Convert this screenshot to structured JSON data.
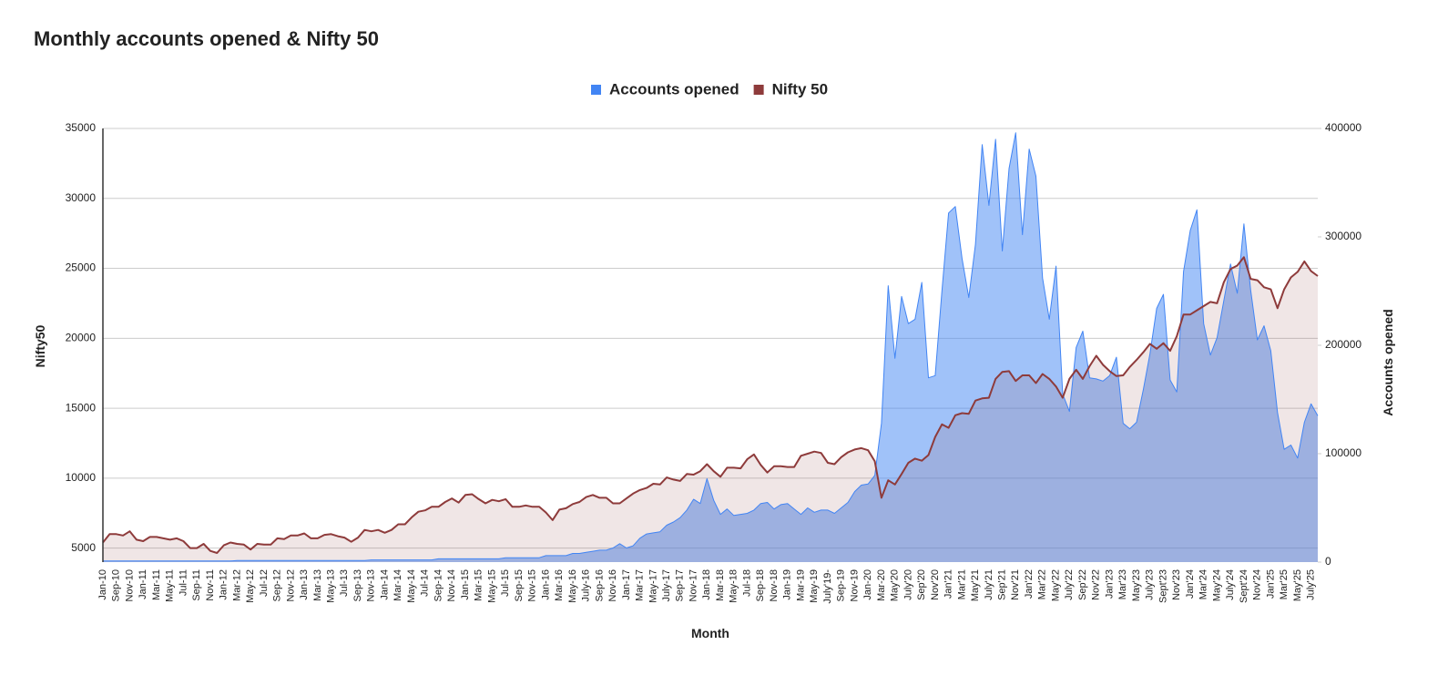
{
  "chart_data": {
    "type": "area",
    "title": "Monthly accounts opened & Nifty 50",
    "x_axis_label": "Month",
    "y_axis_label": "Nifty50",
    "y2_axis_label": "Accounts opened",
    "legend": "top",
    "grid": true,
    "categories": [
      "Jan-10",
      null,
      "Sep-10",
      null,
      "Nov-10",
      null,
      "Jan-11",
      null,
      "Mar-11",
      null,
      "May-11",
      null,
      "Jul-11",
      null,
      "Sep-11",
      null,
      "Nov-11",
      null,
      "Jan-12",
      null,
      "Mar-12",
      null,
      "May-12",
      null,
      "Jul-12",
      null,
      "Sep-12",
      null,
      "Nov-12",
      null,
      "Jan-13",
      null,
      "Mar-13",
      null,
      "May-13",
      null,
      "Jul-13",
      null,
      "Sep-13",
      null,
      "Nov-13",
      null,
      "Jan-14",
      null,
      "Mar-14",
      null,
      "May-14",
      null,
      "Jul-14",
      null,
      "Sep-14",
      null,
      "Nov-14",
      null,
      "Jan-15",
      null,
      "Mar-15",
      null,
      "May-15",
      null,
      "Jul-15",
      null,
      "Sep-15",
      null,
      "Nov-15",
      null,
      "Jan-16",
      null,
      "Mar-16",
      null,
      "May-16",
      null,
      "July-16",
      null,
      "Sep-16",
      null,
      "Nov-16",
      null,
      "Jan-17",
      null,
      "Mar-17",
      null,
      "May-17",
      null,
      "July-17",
      null,
      "Sep-17",
      null,
      "Nov-17",
      null,
      "Jan-18",
      null,
      "Mar-18",
      null,
      "May-18",
      null,
      "Jul-18",
      null,
      "Sep-18",
      null,
      "Nov-18",
      null,
      "Jan-19",
      null,
      "Mar-19",
      null,
      "May-19",
      null,
      "July'19-",
      null,
      "Sep-19",
      null,
      "Nov-19",
      null,
      "Jan-20",
      null,
      "Mar-20",
      null,
      "May'20",
      null,
      "July'20",
      null,
      "Sep'20",
      null,
      "Nov'20",
      null,
      "Jan'21",
      null,
      "Mar'21",
      null,
      "May'21",
      null,
      "July'21",
      null,
      "Sep'21",
      null,
      "Nov'21",
      null,
      "Jan'22",
      null,
      "Mar'22",
      null,
      "May'22",
      null,
      "July'22",
      null,
      "Sep'22",
      null,
      "Nov'22",
      null,
      "Jan'23",
      null,
      "Mar'23",
      null,
      "May'23",
      null,
      "July'23",
      null,
      "Sept'23",
      null,
      "Nov'23",
      null,
      "Jan'24",
      null,
      "Mar'24",
      null,
      "May'24",
      null,
      "July'24",
      null,
      "Sept'24",
      null,
      "Nov'24",
      null,
      "Jan'25",
      null,
      "Mar'25",
      null,
      "May'25",
      null,
      "July'25",
      null
    ],
    "ylim": [
      4000,
      35000
    ],
    "yticks": [
      5000,
      10000,
      15000,
      20000,
      25000,
      30000,
      35000
    ],
    "y2lim": [
      0,
      400000
    ],
    "y2ticks": [
      0,
      100000,
      200000,
      300000,
      400000
    ],
    "series": [
      {
        "name": "Accounts opened",
        "color": "#4285f4",
        "axis": "y2",
        "values": [
          1000,
          1000,
          1000,
          1000,
          1000,
          1000,
          1000,
          1000,
          1000,
          1000,
          1000,
          1000,
          1000,
          1000,
          1000,
          1000,
          1000,
          1000,
          1000,
          1000,
          1500,
          1500,
          1500,
          1500,
          1500,
          1500,
          1500,
          1500,
          1500,
          1500,
          1500,
          1500,
          1500,
          1500,
          1500,
          1500,
          1500,
          1500,
          1500,
          1500,
          2000,
          2000,
          2000,
          2000,
          2000,
          2000,
          2000,
          2000,
          2000,
          2000,
          3000,
          3000,
          3000,
          3000,
          3000,
          3000,
          3000,
          3000,
          3000,
          3000,
          4000,
          4000,
          4000,
          4000,
          4000,
          4000,
          6000,
          6000,
          6000,
          6000,
          8000,
          8000,
          9000,
          10000,
          11000,
          11000,
          13000,
          17000,
          13000,
          15000,
          22000,
          26000,
          27000,
          28000,
          34000,
          37000,
          41000,
          48000,
          58000,
          54000,
          77000,
          57000,
          44000,
          49000,
          43000,
          44000,
          45000,
          48000,
          54000,
          55000,
          49000,
          53000,
          54000,
          49000,
          44000,
          50000,
          46000,
          48000,
          48000,
          45000,
          50000,
          55000,
          65000,
          71000,
          72000,
          80000,
          128000,
          255000,
          188000,
          245000,
          220000,
          224000,
          258000,
          170000,
          172000,
          250000,
          322000,
          328000,
          280000,
          244000,
          293000,
          385000,
          329000,
          390000,
          287000,
          363000,
          396000,
          302000,
          381000,
          356000,
          262000,
          224000,
          273000,
          155000,
          139000,
          198000,
          213000,
          170000,
          169000,
          167000,
          172000,
          189000,
          128000,
          123000,
          129000,
          159000,
          192000,
          234000,
          247000,
          168000,
          157000,
          268000,
          306000,
          325000,
          220000,
          191000,
          207000,
          241000,
          275000,
          248000,
          312000,
          251000,
          205000,
          218000,
          195000,
          138000,
          104000,
          108000,
          96000,
          129000,
          146000,
          135000
        ]
      },
      {
        "name": "Nifty 50",
        "color": "#8e3b3b",
        "axis": "y",
        "values": [
          5400,
          6000,
          6000,
          5900,
          6200,
          5600,
          5500,
          5800,
          5800,
          5700,
          5600,
          5700,
          5500,
          5000,
          5000,
          5300,
          4800,
          4650,
          5200,
          5400,
          5300,
          5250,
          4900,
          5300,
          5250,
          5250,
          5700,
          5650,
          5900,
          5900,
          6050,
          5700,
          5700,
          5950,
          6000,
          5850,
          5750,
          5450,
          5750,
          6300,
          6200,
          6300,
          6100,
          6300,
          6700,
          6700,
          7200,
          7600,
          7700,
          7950,
          7950,
          8300,
          8550,
          8250,
          8800,
          8850,
          8500,
          8200,
          8450,
          8350,
          8500,
          7950,
          7950,
          8050,
          7950,
          7950,
          7550,
          7000,
          7750,
          7850,
          8150,
          8300,
          8650,
          8800,
          8600,
          8600,
          8200,
          8200,
          8550,
          8900,
          9150,
          9300,
          9600,
          9550,
          10050,
          9900,
          9800,
          10300,
          10250,
          10500,
          11000,
          10500,
          10100,
          10750,
          10750,
          10700,
          11350,
          11700,
          10950,
          10400,
          10850,
          10850,
          10800,
          10800,
          11600,
          11750,
          11900,
          11800,
          11100,
          11000,
          11500,
          11850,
          12050,
          12150,
          12000,
          11200,
          8600,
          9850,
          9550,
          10300,
          11100,
          11400,
          11250,
          11650,
          12950,
          13850,
          13600,
          14500,
          14650,
          14600,
          15550,
          15700,
          15750,
          17100,
          17600,
          17650,
          16950,
          17350,
          17350,
          16800,
          17450,
          17100,
          16550,
          15750,
          17100,
          17750,
          17100,
          18000,
          18750,
          18100,
          17650,
          17300,
          17350,
          17950,
          18450,
          19000,
          19600,
          19250,
          19650,
          19100,
          20150,
          21700,
          21700,
          22000,
          22300,
          22600,
          22500,
          24000,
          24950,
          25200,
          25800,
          24250,
          24150,
          23650,
          23500,
          22150,
          23500,
          24350,
          24750,
          25500,
          24800,
          24450
        ]
      }
    ]
  }
}
